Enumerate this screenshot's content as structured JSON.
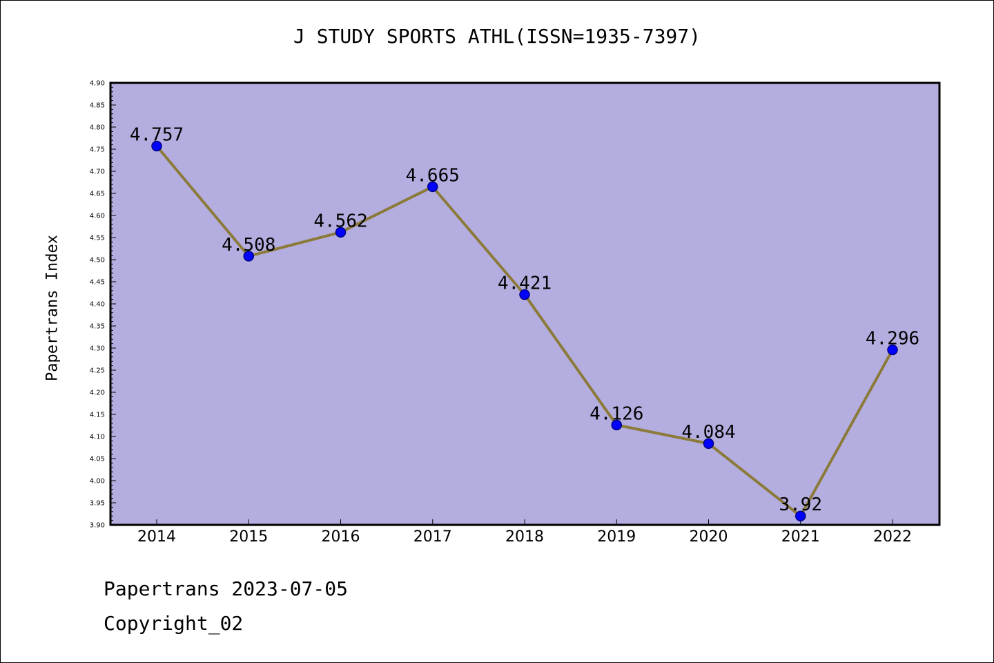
{
  "colors": {
    "plot_background": "#b4aee0",
    "line": "#8b7a3a",
    "marker": "#0000ff",
    "marker_edge": "#000080"
  },
  "footer": {
    "line1": "Papertrans 2023-07-05",
    "line2": "Copyright_02"
  },
  "chart_data": {
    "type": "line",
    "title": "J STUDY SPORTS ATHL(ISSN=1935-7397)",
    "xlabel": "",
    "ylabel": "Papertrans Index",
    "categories": [
      "2014",
      "2015",
      "2016",
      "2017",
      "2018",
      "2019",
      "2020",
      "2021",
      "2022"
    ],
    "series": [
      {
        "values": [
          4.757,
          4.508,
          4.562,
          4.665,
          4.421,
          4.126,
          4.084,
          3.92,
          4.296
        ],
        "labels": [
          "4.757",
          "4.508",
          "4.562",
          "4.665",
          "4.421",
          "4.126",
          "4.084",
          "3.92",
          "4.296"
        ]
      }
    ],
    "ylim": [
      3.9,
      4.9
    ],
    "yticks": [
      "3.90",
      "3.95",
      "4.00",
      "4.05",
      "4.10",
      "4.15",
      "4.20",
      "4.25",
      "4.30",
      "4.35",
      "4.40",
      "4.45",
      "4.50",
      "4.55",
      "4.60",
      "4.65",
      "4.70",
      "4.75",
      "4.80",
      "4.85",
      "4.90"
    ],
    "grid": false,
    "legend": "none"
  }
}
